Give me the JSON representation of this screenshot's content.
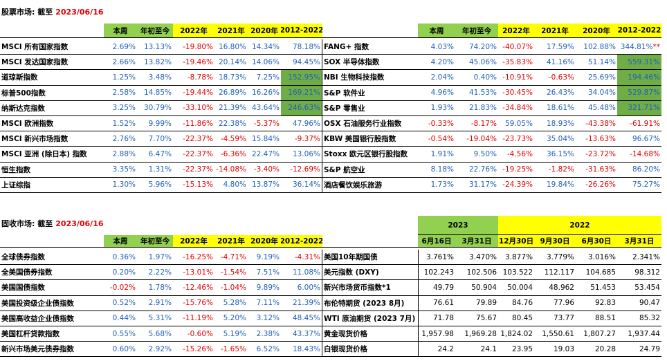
{
  "equity": {
    "title_label": "股票市场: 截至",
    "title_date": "2023/06/16",
    "left_headers": [
      "本周",
      "年初至今",
      "2022年",
      "2021年",
      "2020年",
      "2012-2022"
    ],
    "right_headers": [
      "本周",
      "年初至今",
      "2022年",
      "2021年",
      "2020年",
      "2012-2022"
    ],
    "rows": [
      {
        "left": {
          "name": "MSCI 所有国家指数",
          "v": [
            "2.69%",
            "13.13%",
            "-19.80%",
            "16.80%",
            "14.34%",
            "78.18%"
          ]
        },
        "right": {
          "name": "FANG+ 指数",
          "v": [
            "4.03%",
            "74.20%",
            "-40.07%",
            "17.59%",
            "102.88%",
            "344.81%"
          ],
          "note": "**"
        }
      },
      {
        "left": {
          "name": "MSCI 发达国家指数",
          "v": [
            "2.66%",
            "13.82%",
            "-19.46%",
            "20.14%",
            "14.06%",
            "94.45%"
          ]
        },
        "right": {
          "name": "SOX 半导体指数",
          "v": [
            "4.20%",
            "45.06%",
            "-35.83%",
            "41.16%",
            "51.14%",
            "559.31%"
          ]
        }
      },
      {
        "left": {
          "name": "道琼斯指数",
          "v": [
            "1.25%",
            "3.48%",
            "-8.78%",
            "18.73%",
            "7.25%",
            "152.95%"
          ]
        },
        "right": {
          "name": "NBI 生物科技指数",
          "v": [
            "2.04%",
            "0.40%",
            "-10.91%",
            "-0.63%",
            "25.69%",
            "194.46%"
          ]
        }
      },
      {
        "left": {
          "name": "标普500指数",
          "v": [
            "2.58%",
            "14.85%",
            "-19.44%",
            "26.89%",
            "16.26%",
            "169.21%"
          ]
        },
        "right": {
          "name": "S&P 软件业",
          "v": [
            "4.96%",
            "41.53%",
            "-30.45%",
            "26.43%",
            "34.04%",
            "529.87%"
          ]
        }
      },
      {
        "left": {
          "name": "纳斯达克指数",
          "v": [
            "3.25%",
            "30.79%",
            "-33.10%",
            "21.39%",
            "43.64%",
            "246.63%"
          ]
        },
        "right": {
          "name": "S&P 零售业",
          "v": [
            "1.93%",
            "21.83%",
            "-34.84%",
            "18.61%",
            "45.48%",
            "321.71%"
          ]
        }
      },
      {
        "left": {
          "name": "MSCI 欧洲指数",
          "v": [
            "1.52%",
            "9.99%",
            "-11.86%",
            "22.38%",
            "-5.37%",
            "47.96%"
          ]
        },
        "right": {
          "name": "OSX 石油服务行业指数",
          "v": [
            "-0.33%",
            "-8.17%",
            "59.05%",
            "18.93%",
            "-43.38%",
            "-61.91%"
          ]
        }
      },
      {
        "left": {
          "name": "MSCI 新兴市场指数",
          "v": [
            "2.76%",
            "7.70%",
            "-22.37%",
            "-4.59%",
            "15.84%",
            "-9.37%"
          ]
        },
        "right": {
          "name": "KBW 美国银行股指数",
          "v": [
            "-0.54%",
            "-19.04%",
            "-23.73%",
            "35.04%",
            "-13.63%",
            "96.67%"
          ]
        }
      },
      {
        "left": {
          "name": "MSCI 亚洲 (除日本) 指数",
          "v": [
            "2.88%",
            "6.47%",
            "-22.37%",
            "-6.36%",
            "22.47%",
            "13.06%"
          ]
        },
        "right": {
          "name": "Stoxx 欧元区银行股指数",
          "v": [
            "1.91%",
            "9.50%",
            "-4.56%",
            "36.15%",
            "-23.72%",
            "-14.68%"
          ]
        }
      },
      {
        "left": {
          "name": "恒生指数",
          "v": [
            "3.35%",
            "1.31%",
            "-22.37%",
            "-14.08%",
            "-3.40%",
            "-12.69%"
          ]
        },
        "right": {
          "name": "S&P 航空业",
          "v": [
            "8.18%",
            "22.76%",
            "-19.25%",
            "-1.82%",
            "-31.63%",
            "86.20%"
          ]
        }
      },
      {
        "left": {
          "name": "上证综指",
          "v": [
            "1.30%",
            "5.96%",
            "-15.13%",
            "4.80%",
            "13.87%",
            "36.14%"
          ]
        },
        "right": {
          "name": "酒店餐饮娱乐旅游",
          "v": [
            "1.73%",
            "31.17%",
            "-24.39%",
            "19.84%",
            "-26.26%",
            "75.27%"
          ]
        }
      }
    ]
  },
  "fixed_income": {
    "title_label": "固收市场: 截至",
    "title_date": "2023/06/16",
    "left_headers": [
      "本周",
      "年初至今",
      "2022年",
      "2021年",
      "2020年",
      "2012-2022"
    ],
    "group_headers": [
      "2023",
      "2022"
    ],
    "right_headers": [
      "6月16日",
      "3月31日",
      "12月30日",
      "9月30日",
      "6月30日",
      "3月31日"
    ],
    "rows": [
      {
        "left": {
          "name": "全球债券指数",
          "v": [
            "0.36%",
            "1.97%",
            "-16.25%",
            "-4.71%",
            "9.19%",
            "-4.31%"
          ]
        },
        "right": {
          "name": "美国10年期国债",
          "v": [
            "3.761%",
            "3.470%",
            "3.877%",
            "3.779%",
            "3.016%",
            "2.341%"
          ]
        }
      },
      {
        "left": {
          "name": "全美国债券指数",
          "v": [
            "0.20%",
            "2.22%",
            "-13.01%",
            "-1.54%",
            "7.51%",
            "11.08%"
          ]
        },
        "right": {
          "name": "美元指数 (DXY)",
          "v": [
            "102.243",
            "102.506",
            "103.522",
            "112.117",
            "104.685",
            "98.312"
          ]
        }
      },
      {
        "left": {
          "name": "美国国债指数",
          "v": [
            "-0.02%",
            "1.78%",
            "-12.46%",
            "-1.04%",
            "9.89%",
            "6.00%"
          ]
        },
        "right": {
          "name": "新兴市场货币指数*1",
          "v": [
            "49.79",
            "50.904",
            "50.004",
            "48.962",
            "51.453",
            "53.454"
          ]
        }
      },
      {
        "left": {
          "name": "美国投资级企业债指数",
          "v": [
            "0.52%",
            "2.91%",
            "-15.76%",
            "5.28%",
            "7.11%",
            "21.39%"
          ]
        },
        "right": {
          "name": "布伦特期货 (2023 8月)",
          "v": [
            "76.61",
            "79.89",
            "84.76",
            "77.96",
            "92.83",
            "90.47"
          ]
        }
      },
      {
        "left": {
          "name": "美国高收益企业债指数",
          "v": [
            "0.44%",
            "5.31%",
            "-11.19%",
            "5.20%",
            "3.12%",
            "48.45%"
          ]
        },
        "right": {
          "name": "WTI 原油期货 (2023 7月)",
          "v": [
            "71.78",
            "75.67",
            "80.45",
            "73.77",
            "88.51",
            "85.32"
          ]
        }
      },
      {
        "left": {
          "name": "美国杠杆贷款指数",
          "v": [
            "0.55%",
            "5.68%",
            "-0.60%",
            "5.19%",
            "2.38%",
            "43.37%"
          ]
        },
        "right": {
          "name": "黄金现货价格",
          "v": [
            "1,957.98",
            "1,969.28",
            "1,824.02",
            "1,550.61",
            "1,807.27",
            "1,937.44"
          ]
        }
      },
      {
        "left": {
          "name": "新兴市场美元债券指数",
          "v": [
            "0.60%",
            "2.92%",
            "-15.26%",
            "-1.65%",
            "6.52%",
            "18.43%"
          ]
        },
        "right": {
          "name": "白银现货价格",
          "v": [
            "24.2",
            "24.1",
            "23.95",
            "19.03",
            "20.28",
            "24.79"
          ]
        }
      }
    ]
  },
  "colors": {
    "positive": "#1f5fb8",
    "negative": "#e00000",
    "highlight": "#70ad47",
    "yellow": "#ffff00",
    "green": "#92d050"
  }
}
